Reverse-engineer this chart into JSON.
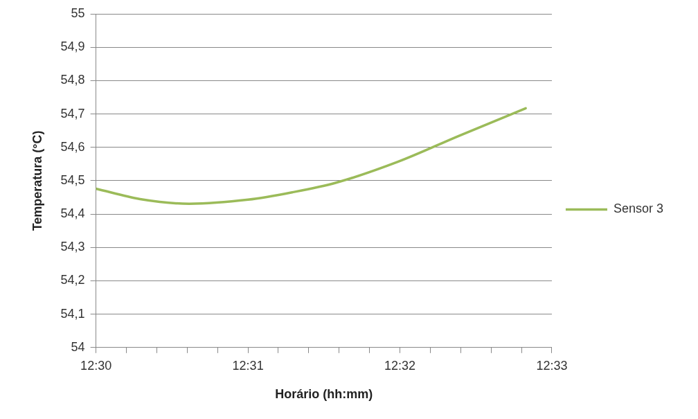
{
  "chart_data": {
    "type": "line",
    "xlabel": "Horário (hh:mm)",
    "ylabel": "Temperatura (°C)",
    "x": [
      12.5,
      12.50484,
      12.51022,
      12.51667,
      12.5215,
      12.52634,
      12.53315,
      12.53978,
      12.54713
    ],
    "series": [
      {
        "name": "Sensor 3",
        "color": "#9bbb59",
        "values": [
          54.476,
          54.445,
          54.431,
          54.443,
          54.465,
          54.494,
          54.557,
          54.634,
          54.717
        ]
      }
    ],
    "xlim": [
      12.5,
      12.55
    ],
    "xticks": [
      {
        "value": 12.5,
        "label": "12:30"
      },
      {
        "value": 12.50333,
        "label": null
      },
      {
        "value": 12.50667,
        "label": null
      },
      {
        "value": 12.51,
        "label": null
      },
      {
        "value": 12.51333,
        "label": null
      },
      {
        "value": 12.51667,
        "label": "12:31"
      },
      {
        "value": 12.52,
        "label": null
      },
      {
        "value": 12.52333,
        "label": null
      },
      {
        "value": 12.52667,
        "label": null
      },
      {
        "value": 12.53,
        "label": null
      },
      {
        "value": 12.53333,
        "label": "12:32"
      },
      {
        "value": 12.53667,
        "label": null
      },
      {
        "value": 12.54,
        "label": null
      },
      {
        "value": 12.54333,
        "label": null
      },
      {
        "value": 12.54667,
        "label": null
      },
      {
        "value": 12.55,
        "label": "12:33"
      }
    ],
    "ylim": [
      54,
      55
    ],
    "yticks": [
      54,
      {
        "value": 54.1,
        "label": "54,1"
      },
      {
        "value": 54.2,
        "label": "54,2"
      },
      {
        "value": 54.3,
        "label": "54,3"
      },
      {
        "value": 54.4,
        "label": "54,4"
      },
      {
        "value": 54.5,
        "label": "54,5"
      },
      {
        "value": 54.6,
        "label": "54,6"
      },
      {
        "value": 54.7,
        "label": "54,7"
      },
      {
        "value": 54.8,
        "label": "54,8"
      },
      {
        "value": 54.9,
        "label": "54,9"
      },
      55
    ],
    "grid": "y",
    "legend": "right",
    "marker": "none",
    "line_style": "solid"
  }
}
